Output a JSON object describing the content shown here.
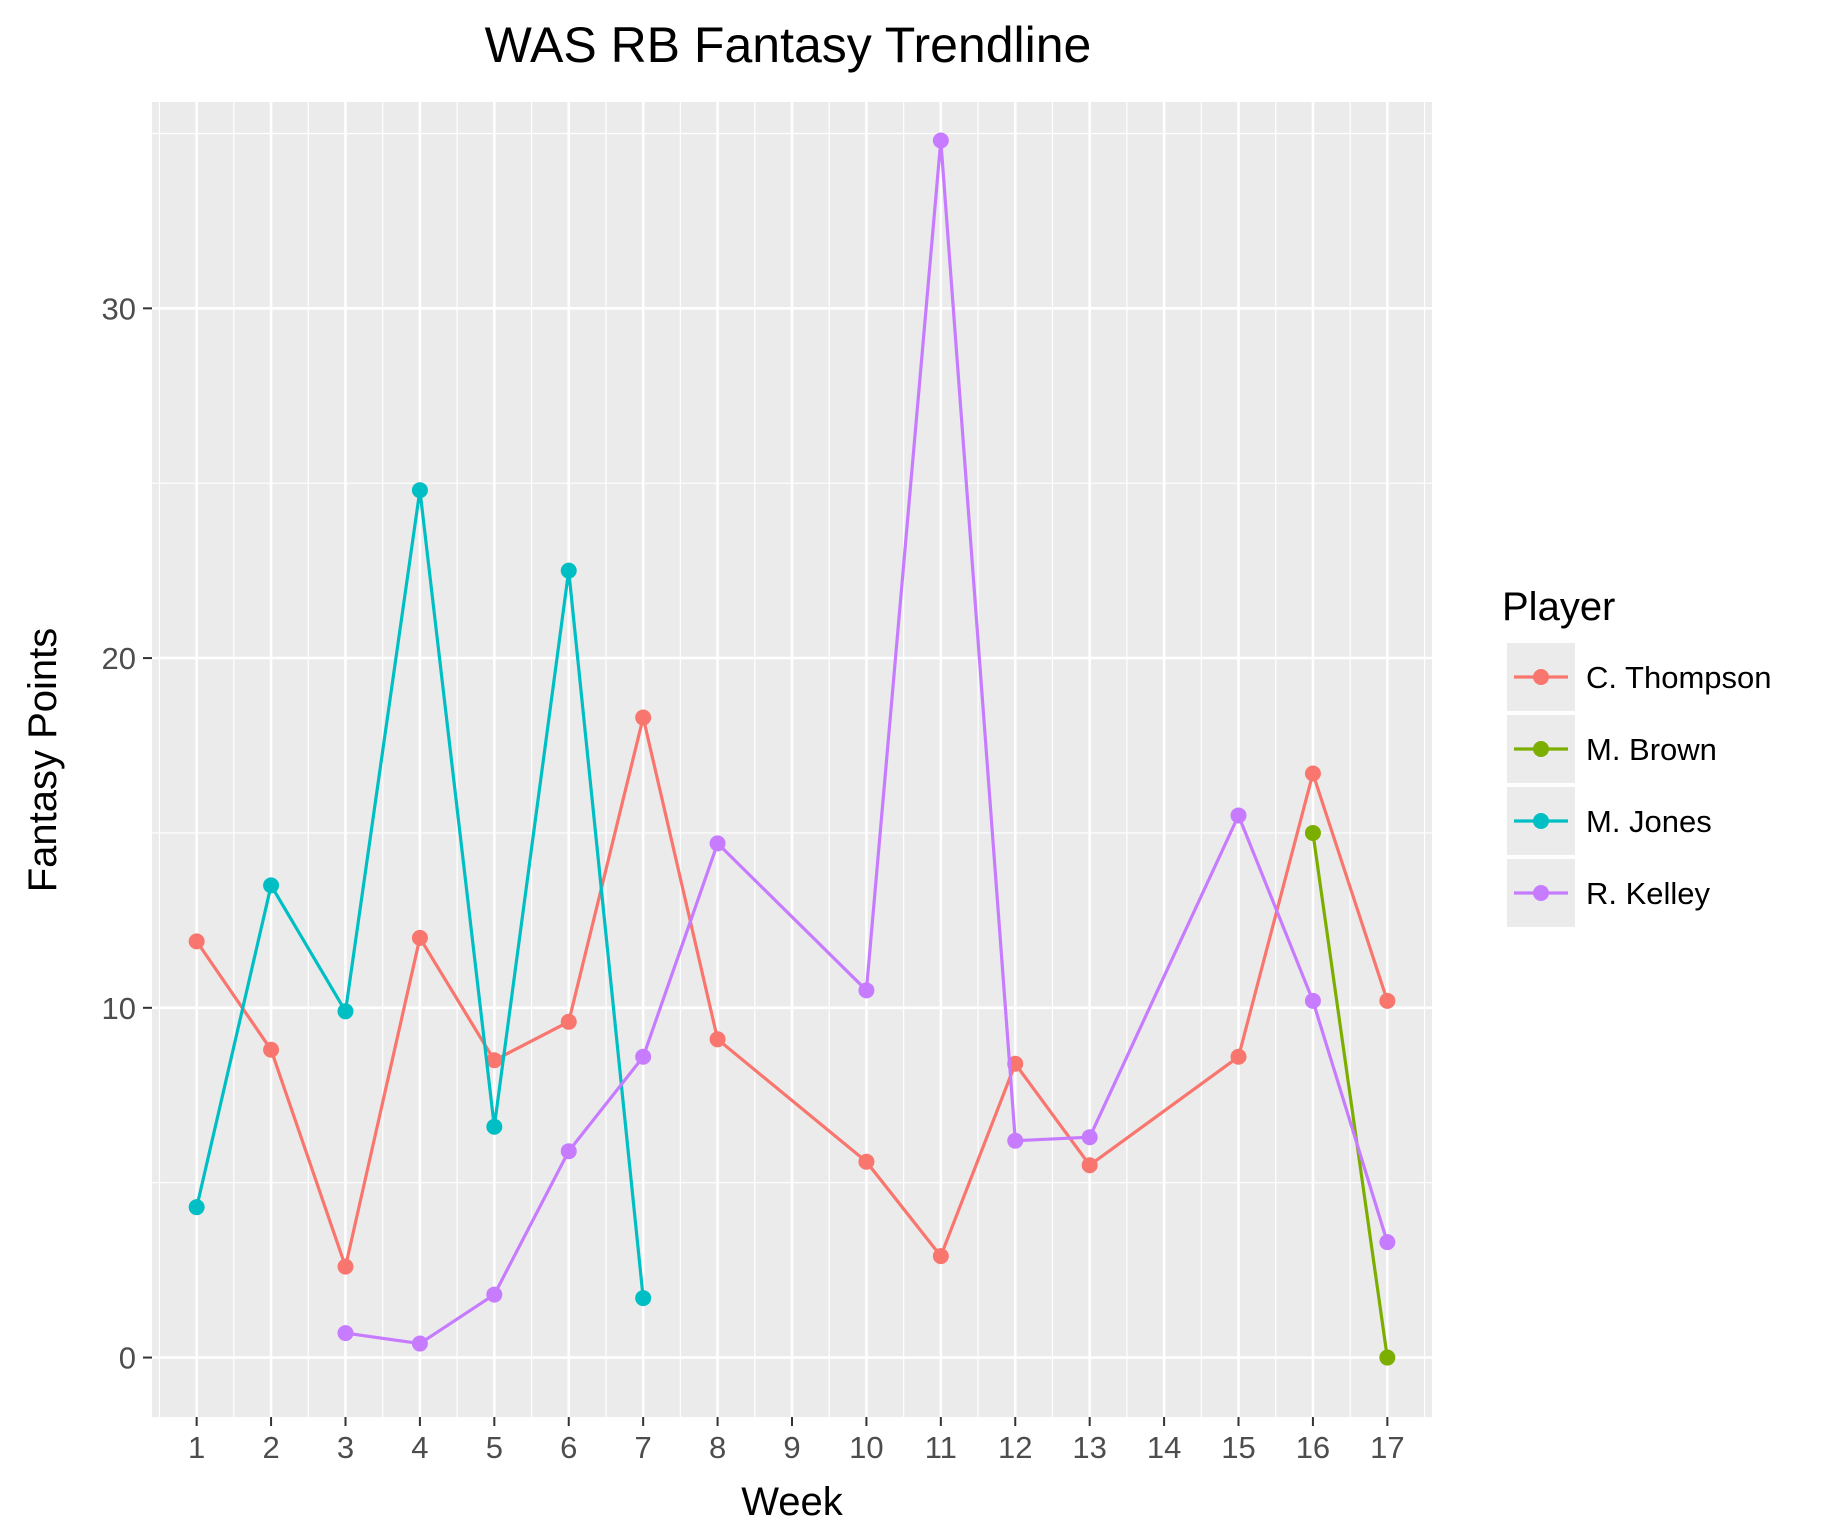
{
  "chart_data": {
    "type": "line",
    "title": "WAS RB Fantasy Trendline",
    "xlabel": "Week",
    "ylabel": "Fantasy Points",
    "categories": [
      "1",
      "2",
      "3",
      "4",
      "5",
      "6",
      "7",
      "8",
      "9",
      "10",
      "11",
      "12",
      "13",
      "14",
      "15",
      "16",
      "17"
    ],
    "ylim": [
      -1.7,
      35.9
    ],
    "yticks": [
      0,
      10,
      20,
      30
    ],
    "grid": true,
    "legend": {
      "title": "Player",
      "position": "right"
    },
    "series": [
      {
        "name": "C. Thompson",
        "color": "#F8766D",
        "points": [
          [
            "1",
            11.9
          ],
          [
            "2",
            8.8
          ],
          [
            "3",
            2.6
          ],
          [
            "4",
            12.0
          ],
          [
            "5",
            8.5
          ],
          [
            "6",
            9.6
          ],
          [
            "7",
            18.3
          ],
          [
            "8",
            9.1
          ],
          [
            "10",
            5.6
          ],
          [
            "11",
            2.9
          ],
          [
            "12",
            8.4
          ],
          [
            "13",
            5.5
          ],
          [
            "15",
            8.6
          ],
          [
            "16",
            16.7
          ],
          [
            "17",
            10.2
          ]
        ]
      },
      {
        "name": "M. Brown",
        "color": "#7CAE00",
        "points": [
          [
            "16",
            15.0
          ],
          [
            "17",
            0.0
          ]
        ]
      },
      {
        "name": "M. Jones",
        "color": "#00BFC4",
        "points": [
          [
            "1",
            4.3
          ],
          [
            "2",
            13.5
          ],
          [
            "3",
            9.9
          ],
          [
            "4",
            24.8
          ],
          [
            "5",
            6.6
          ],
          [
            "6",
            22.5
          ],
          [
            "7",
            1.7
          ]
        ]
      },
      {
        "name": "R. Kelley",
        "color": "#C77CFF",
        "points": [
          [
            "3",
            0.7
          ],
          [
            "4",
            0.4
          ],
          [
            "5",
            1.8
          ],
          [
            "6",
            5.9
          ],
          [
            "7",
            8.6
          ],
          [
            "8",
            14.7
          ],
          [
            "10",
            10.5
          ],
          [
            "11",
            34.8
          ],
          [
            "12",
            6.2
          ],
          [
            "13",
            6.3
          ],
          [
            "15",
            15.5
          ],
          [
            "16",
            10.2
          ],
          [
            "17",
            3.3
          ]
        ]
      }
    ]
  }
}
